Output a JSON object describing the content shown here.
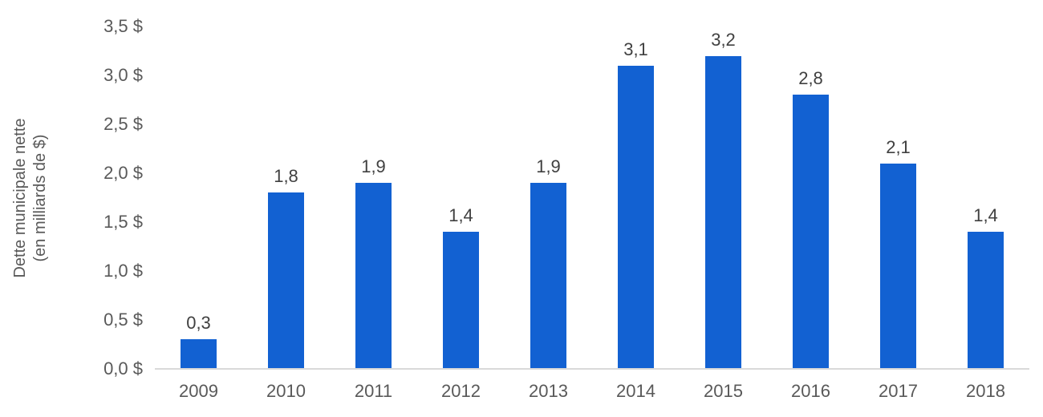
{
  "chart_data": {
    "type": "bar",
    "title": "",
    "ylabel_line1": "Dette municipale nette",
    "ylabel_line2": "(en milliards de $)",
    "xlabel": "",
    "categories": [
      "2009",
      "2010",
      "2011",
      "2012",
      "2013",
      "2014",
      "2015",
      "2016",
      "2017",
      "2018"
    ],
    "values": [
      0.3,
      1.8,
      1.9,
      1.4,
      1.9,
      3.1,
      3.2,
      2.8,
      2.1,
      1.4
    ],
    "value_labels": [
      "0,3",
      "1,8",
      "1,9",
      "1,4",
      "1,9",
      "3,1",
      "3,2",
      "2,8",
      "2,1",
      "1,4"
    ],
    "ylim": [
      0,
      3.5
    ],
    "yticks": [
      {
        "value": 0.0,
        "label": "0,0 $"
      },
      {
        "value": 0.5,
        "label": "0,5 $"
      },
      {
        "value": 1.0,
        "label": "1,0 $"
      },
      {
        "value": 1.5,
        "label": "1,5 $"
      },
      {
        "value": 2.0,
        "label": "2,0 $"
      },
      {
        "value": 2.5,
        "label": "2,5 $"
      },
      {
        "value": 3.0,
        "label": "3,0 $"
      },
      {
        "value": 3.5,
        "label": "3,5 $"
      }
    ],
    "grid": false,
    "legend": false,
    "colors": {
      "bar": "#1261d2",
      "axis_line": "#d9d9d9",
      "axis_text": "#595959",
      "value_label_text": "#404040"
    }
  }
}
